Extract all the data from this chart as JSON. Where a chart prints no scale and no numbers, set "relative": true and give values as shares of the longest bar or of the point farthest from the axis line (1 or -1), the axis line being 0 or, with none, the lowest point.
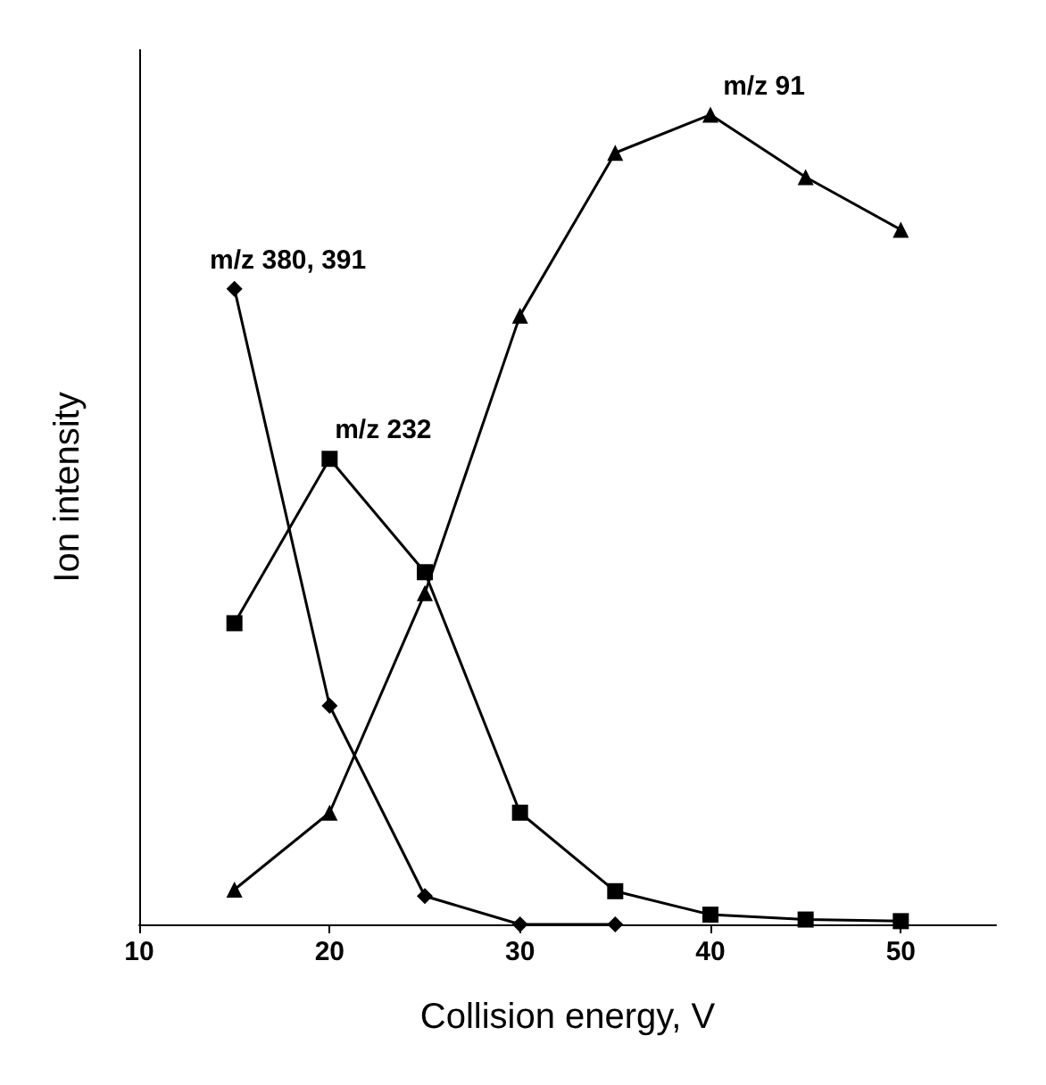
{
  "chart_data": {
    "type": "line",
    "xlabel": "Collision energy, V",
    "ylabel": "Ion intensity",
    "relative": true,
    "x": [
      15,
      20,
      25,
      30,
      35,
      40,
      45,
      50
    ],
    "xlim": [
      10,
      55
    ],
    "xticks": [
      10,
      20,
      30,
      40,
      50
    ],
    "grid": false,
    "legend": false,
    "series": [
      {
        "name": "m/z 380, 391",
        "color": "#000000",
        "marker": "diamond",
        "values": [
          0.785,
          0.27,
          0.035,
          0,
          0,
          null,
          null,
          null
        ]
      },
      {
        "name": "m/z 232",
        "color": "#000000",
        "marker": "square",
        "values": [
          0.372,
          0.575,
          0.435,
          0.138,
          0.041,
          0.012,
          0.006,
          0.004
        ]
      },
      {
        "name": "m/z 91",
        "color": "#000000",
        "marker": "triangle",
        "values": [
          0.043,
          0.138,
          0.409,
          0.752,
          0.953,
          1,
          0.923,
          0.858
        ]
      }
    ]
  }
}
